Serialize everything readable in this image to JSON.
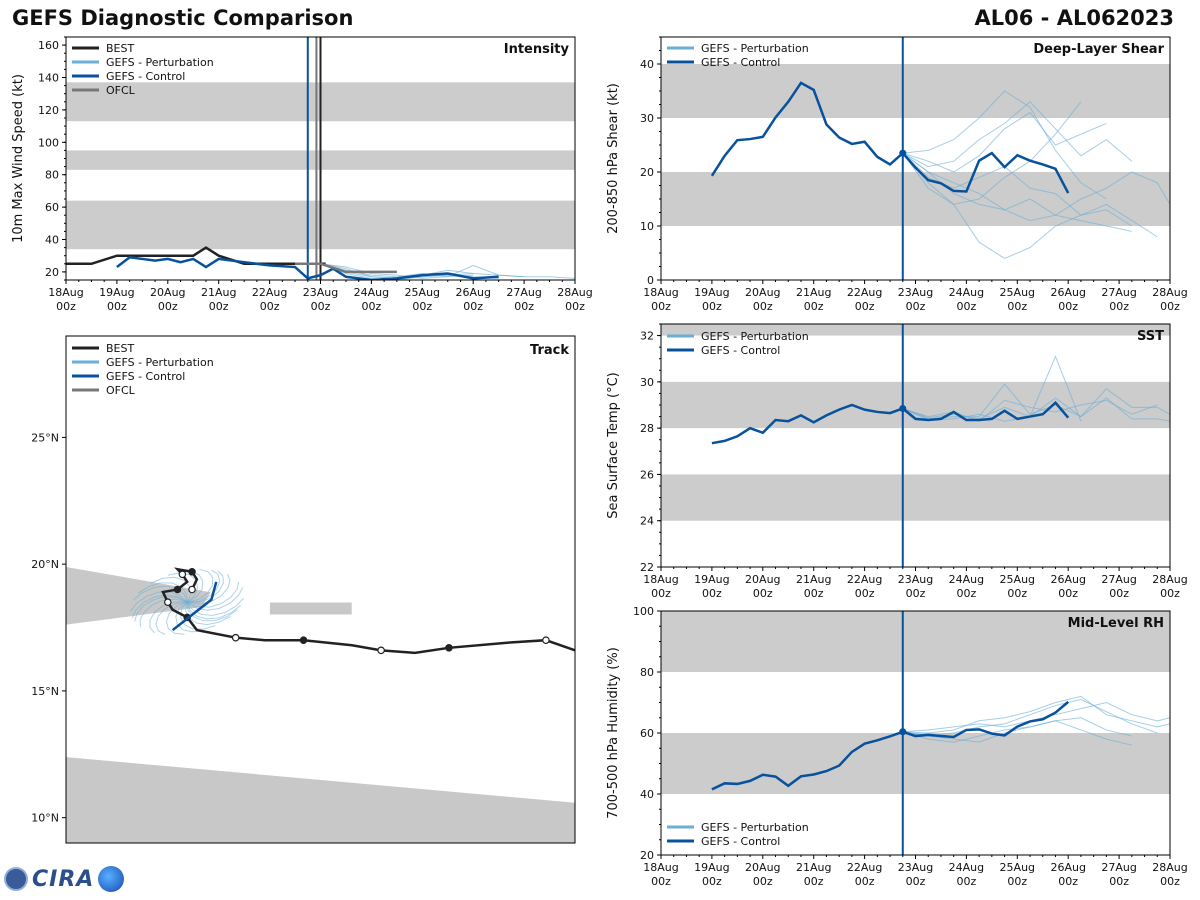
{
  "header": {
    "title_left": "GEFS Diagnostic Comparison",
    "title_right": "AL06 - AL062023"
  },
  "logo": {
    "text": "CIRA"
  },
  "x_ticks": [
    "18Aug\n00z",
    "19Aug\n00z",
    "20Aug\n00z",
    "21Aug\n00z",
    "22Aug\n00z",
    "23Aug\n00z",
    "24Aug\n00z",
    "25Aug\n00z",
    "26Aug\n00z",
    "27Aug\n00z",
    "28Aug\n00z"
  ],
  "legend_labels": {
    "best": "BEST",
    "pert": "GEFS - Perturbation",
    "ctrl": "GEFS - Control",
    "ofcl": "OFCL"
  },
  "colors": {
    "best": "#222222",
    "pert": "#6baed6",
    "ctrl": "#08519c",
    "ofcl": "#777777",
    "band": "#cccccc",
    "land": "#c8c8c8"
  },
  "chart_data": [
    {
      "id": "intensity",
      "type": "line",
      "title": "Intensity",
      "ylabel": "10m Max Wind Speed (kt)",
      "ylim": [
        15,
        165
      ],
      "yticks": [
        20,
        40,
        60,
        80,
        100,
        120,
        140,
        160
      ],
      "bands": [
        [
          34,
          64
        ],
        [
          83,
          95
        ],
        [
          113,
          137
        ]
      ],
      "vlines": [
        {
          "x": 4.92,
          "color": "#777777"
        },
        {
          "x": 5.0,
          "color": "#222222"
        },
        {
          "x": 4.75,
          "color": "#08519c"
        }
      ],
      "series": [
        {
          "name": "BEST",
          "x": [
            0,
            0.5,
            1.0,
            1.5,
            2.0,
            2.5,
            2.75,
            3.0,
            3.5,
            4.0,
            4.5,
            5.0,
            5.1
          ],
          "y": [
            25,
            25,
            30,
            30,
            30,
            30,
            35,
            30,
            25,
            25,
            25,
            25,
            25
          ]
        },
        {
          "name": "GEFS - Control",
          "x": [
            1.0,
            1.25,
            1.5,
            1.75,
            2.0,
            2.25,
            2.5,
            2.75,
            3.0,
            3.5,
            4.0,
            4.5,
            4.75,
            5.0,
            5.25,
            5.5,
            6.0,
            6.5,
            7.0,
            7.5,
            8.0,
            8.5
          ],
          "y": [
            23,
            29,
            28,
            27,
            28,
            26,
            28,
            23,
            28,
            26,
            24,
            23,
            16,
            18,
            22,
            17,
            15,
            16,
            18,
            19,
            16,
            17
          ]
        },
        {
          "name": "OFCL",
          "x": [
            4.5,
            5.0,
            5.5,
            6.0,
            6.5
          ],
          "y": [
            25,
            25,
            20,
            20,
            20
          ]
        }
      ],
      "perturbation": [
        {
          "x": [
            5,
            5.5,
            6,
            6.5,
            7,
            7.5,
            8
          ],
          "y": [
            25,
            21,
            18,
            17,
            19,
            17,
            18
          ]
        },
        {
          "x": [
            5,
            5.5,
            6,
            6.5,
            7,
            7.5,
            8,
            8.5
          ],
          "y": [
            25,
            19,
            16,
            15,
            17,
            18,
            17,
            16
          ]
        },
        {
          "x": [
            5,
            5.5,
            6,
            6.5,
            7,
            7.5,
            8,
            8.5,
            9
          ],
          "y": [
            25,
            23,
            19,
            18,
            16,
            17,
            24,
            18,
            17
          ]
        },
        {
          "x": [
            5,
            5.5,
            6,
            6.5,
            7,
            7.5,
            8
          ],
          "y": [
            25,
            22,
            17,
            16,
            18,
            21,
            19
          ]
        },
        {
          "x": [
            5,
            5.5,
            6,
            6.5,
            7,
            7.5,
            8,
            8.5,
            9,
            9.5,
            10
          ],
          "y": [
            25,
            20,
            17,
            16,
            17,
            18,
            19,
            18,
            17,
            17,
            16
          ]
        }
      ]
    },
    {
      "id": "shear",
      "type": "line",
      "title": "Deep-Layer Shear",
      "ylabel": "200-850 hPa Shear (kt)",
      "ylim": [
        0,
        45
      ],
      "yticks": [
        0,
        10,
        20,
        30,
        40
      ],
      "bands": [
        [
          10,
          20
        ],
        [
          30,
          40
        ]
      ],
      "vline_x": 4.75,
      "series": [
        {
          "name": "GEFS - Control",
          "x": [
            1.0,
            1.25,
            1.5,
            1.75,
            2.0,
            2.25,
            2.5,
            2.75,
            3.0,
            3.25,
            3.5,
            3.75,
            4.0,
            4.25,
            4.5,
            4.75,
            5.0,
            5.25,
            5.5,
            5.75,
            6.0,
            6.25,
            6.5,
            6.75,
            7.0,
            7.25,
            7.5,
            7.75,
            8.0
          ],
          "y": [
            19.3,
            23.0,
            25.9,
            26.1,
            26.5,
            30.1,
            33.0,
            36.5,
            35.2,
            28.8,
            26.4,
            25.2,
            25.6,
            22.8,
            21.4,
            23.5,
            20.8,
            18.5,
            17.9,
            16.5,
            16.4,
            22.1,
            23.5,
            20.9,
            23.1,
            22.1,
            21.4,
            20.6,
            16.1
          ]
        }
      ],
      "perturbation": [
        {
          "x": [
            4.75,
            5.25,
            5.75,
            6.25,
            6.75,
            7.25,
            7.75,
            8.25,
            8.75,
            9.25
          ],
          "y": [
            23.5,
            20,
            16,
            14,
            13,
            15,
            12,
            11,
            10,
            9
          ]
        },
        {
          "x": [
            4.75,
            5.25,
            5.75,
            6.25,
            6.75,
            7.25,
            7.75,
            8.25,
            8.75
          ],
          "y": [
            23.5,
            22,
            20,
            23,
            28,
            31,
            25,
            27,
            29
          ]
        },
        {
          "x": [
            4.75,
            5.25,
            5.75,
            6.25,
            6.75,
            7.25,
            7.75,
            8.25,
            8.75,
            9.25,
            9.75
          ],
          "y": [
            23.5,
            18,
            14,
            7,
            4,
            6,
            10,
            12,
            14,
            11,
            8
          ]
        },
        {
          "x": [
            4.75,
            5.25,
            5.75,
            6.25,
            6.75,
            7.25,
            7.75,
            8.25,
            8.75
          ],
          "y": [
            23.5,
            24,
            26,
            30,
            35,
            32,
            24,
            18,
            15
          ]
        },
        {
          "x": [
            4.75,
            5.25,
            5.75,
            6.25,
            6.75,
            7.25,
            7.75,
            8.25,
            8.75,
            9.25
          ],
          "y": [
            23.5,
            19,
            17,
            19,
            21,
            17,
            16,
            12,
            13,
            10
          ]
        },
        {
          "x": [
            4.75,
            5.25,
            5.75,
            6.25,
            6.75,
            7.25,
            7.75,
            8.25,
            8.75,
            9.25
          ],
          "y": [
            23.5,
            21,
            22,
            26,
            29,
            33,
            28,
            23,
            26,
            22
          ]
        },
        {
          "x": [
            4.75,
            5.25,
            5.75,
            6.25,
            6.75,
            7.25,
            7.75,
            8.25
          ],
          "y": [
            23.5,
            17,
            14,
            15,
            19,
            22,
            27,
            33
          ]
        },
        {
          "x": [
            4.75,
            5.25,
            5.75,
            6.25,
            6.75,
            7.25,
            7.75,
            8.25,
            8.75,
            9.25,
            9.75,
            10
          ],
          "y": [
            23.5,
            20,
            18,
            16,
            13,
            11,
            12,
            15,
            17,
            20,
            18,
            14
          ]
        }
      ]
    },
    {
      "id": "sst",
      "type": "line",
      "title": "SST",
      "ylabel": "Sea Surface Temp (°C)",
      "ylim": [
        22,
        32.5
      ],
      "yticks": [
        22,
        24,
        26,
        28,
        30,
        32
      ],
      "bands": [
        [
          24,
          26
        ],
        [
          28,
          30
        ],
        [
          32,
          32.5
        ]
      ],
      "vline_x": 4.75,
      "series": [
        {
          "name": "GEFS - Control",
          "x": [
            1.0,
            1.25,
            1.5,
            1.75,
            2.0,
            2.25,
            2.5,
            2.75,
            3.0,
            3.25,
            3.5,
            3.75,
            4.0,
            4.25,
            4.5,
            4.75,
            5.0,
            5.25,
            5.5,
            5.75,
            6.0,
            6.25,
            6.5,
            6.75,
            7.0,
            7.25,
            7.5,
            7.75,
            8.0
          ],
          "y": [
            27.35,
            27.45,
            27.65,
            28.0,
            27.8,
            28.35,
            28.3,
            28.55,
            28.25,
            28.55,
            28.8,
            29.0,
            28.8,
            28.7,
            28.65,
            28.85,
            28.4,
            28.35,
            28.4,
            28.7,
            28.35,
            28.35,
            28.4,
            28.75,
            28.4,
            28.5,
            28.6,
            29.1,
            28.45
          ]
        }
      ],
      "perturbation": [
        {
          "x": [
            4.75,
            5.25,
            5.75,
            6.25,
            6.75,
            7.25,
            7.75,
            8.25,
            8.75,
            9.25,
            9.75,
            10
          ],
          "y": [
            28.85,
            28.4,
            28.5,
            28.5,
            29.9,
            28.6,
            29.0,
            28.5,
            29.7,
            28.9,
            28.9,
            28.6
          ]
        },
        {
          "x": [
            4.75,
            5.25,
            5.75,
            6.25,
            6.75,
            7.25,
            7.75,
            8.25
          ],
          "y": [
            28.85,
            28.45,
            28.6,
            28.4,
            28.9,
            28.5,
            31.1,
            28.3
          ]
        },
        {
          "x": [
            4.75,
            5.25,
            5.75,
            6.25,
            6.75,
            7.25,
            7.75,
            8.25,
            8.75,
            9.25,
            9.75,
            10
          ],
          "y": [
            28.85,
            28.35,
            28.4,
            28.6,
            28.3,
            28.5,
            29.3,
            28.5,
            29.3,
            28.4,
            28.4,
            28.3
          ]
        },
        {
          "x": [
            4.75,
            5.25,
            5.75,
            6.25,
            6.75,
            7.25,
            7.75,
            8.25,
            8.75,
            9.25,
            9.75
          ],
          "y": [
            28.85,
            28.5,
            28.7,
            28.3,
            29.2,
            28.9,
            28.7,
            29.0,
            29.2,
            28.6,
            29.0
          ]
        }
      ]
    },
    {
      "id": "rh",
      "type": "line",
      "title": "Mid-Level RH",
      "ylabel": "700-500 hPa Humidity (%)",
      "ylim": [
        20,
        100
      ],
      "yticks": [
        20,
        40,
        60,
        80,
        100
      ],
      "bands": [
        [
          40,
          60
        ],
        [
          80,
          100
        ]
      ],
      "vline_x": 4.75,
      "series": [
        {
          "name": "GEFS - Control",
          "x": [
            1.0,
            1.25,
            1.5,
            1.75,
            2.0,
            2.25,
            2.5,
            2.75,
            3.0,
            3.25,
            3.5,
            3.75,
            4.0,
            4.25,
            4.5,
            4.75,
            5.0,
            5.25,
            5.5,
            5.75,
            6.0,
            6.25,
            6.5,
            6.75,
            7.0,
            7.25,
            7.5,
            7.75,
            8.0
          ],
          "y": [
            41.5,
            43.5,
            43.3,
            44.3,
            46.3,
            45.7,
            42.7,
            45.8,
            46.4,
            47.5,
            49.3,
            53.8,
            56.5,
            57.6,
            58.9,
            60.4,
            59.0,
            59.4,
            59.0,
            58.7,
            61.0,
            61.2,
            59.8,
            59.2,
            62.1,
            63.8,
            64.5,
            66.7,
            70.2
          ]
        }
      ],
      "perturbation": [
        {
          "x": [
            4.75,
            5.25,
            5.75,
            6.25,
            6.75,
            7.25,
            7.75,
            8.25,
            8.75,
            9.25,
            9.75,
            10
          ],
          "y": [
            60.4,
            60,
            61,
            64,
            65,
            67,
            70,
            72,
            66,
            64,
            62,
            63
          ]
        },
        {
          "x": [
            4.75,
            5.25,
            5.75,
            6.25,
            6.75,
            7.25,
            7.75,
            8.25,
            8.75,
            9.25,
            9.75
          ],
          "y": [
            60.4,
            59,
            60,
            62,
            63,
            66,
            69,
            71,
            67,
            63,
            60
          ]
        },
        {
          "x": [
            4.75,
            5.25,
            5.75,
            6.25,
            6.75,
            7.25,
            7.75,
            8.25,
            8.75,
            9.25
          ],
          "y": [
            60.4,
            58,
            57,
            59,
            61,
            62,
            64,
            61,
            58,
            56
          ]
        },
        {
          "x": [
            4.75,
            5.25,
            5.75,
            6.25,
            6.75,
            7.25,
            7.75,
            8.25,
            8.75,
            9.25,
            9.75,
            10
          ],
          "y": [
            60.4,
            61,
            62,
            63,
            62,
            64,
            66,
            68,
            70,
            66,
            64,
            65
          ]
        },
        {
          "x": [
            4.75,
            5.25,
            5.75,
            6.25,
            6.75,
            7.25,
            7.75,
            8.25,
            8.75,
            9.25
          ],
          "y": [
            60.4,
            59,
            58,
            57,
            60,
            62,
            64,
            65,
            61,
            59
          ]
        }
      ]
    },
    {
      "id": "track",
      "type": "scatter",
      "title": "Track",
      "xlim_lon": [
        -71.5,
        -61.0
      ],
      "ylim_lat": [
        9.0,
        29.0
      ],
      "yticks_lat": [
        10,
        15,
        20,
        25
      ],
      "ytick_labels": [
        "10°N",
        "15°N",
        "20°N",
        "25°N"
      ],
      "best_track": {
        "lon": [
          -61.0,
          -61.6,
          -62.4,
          -63.6,
          -64.3,
          -65.0,
          -65.6,
          -66.6,
          -67.4,
          -68.0,
          -68.8,
          -69.0,
          -69.3,
          -69.4,
          -69.5,
          -69.2,
          -69.0,
          -69.1,
          -69.2,
          -68.9,
          -68.8,
          -68.9
        ],
        "lat": [
          16.6,
          17.0,
          16.9,
          16.7,
          16.5,
          16.6,
          16.8,
          17.0,
          17.0,
          17.1,
          17.4,
          17.9,
          18.2,
          18.5,
          18.9,
          19.0,
          19.3,
          19.6,
          19.8,
          19.7,
          19.4,
          19.0
        ]
      },
      "ctrl_track": {
        "lon": [
          -69.3,
          -69.1,
          -68.9,
          -68.7,
          -68.5,
          -68.4
        ],
        "lat": [
          17.4,
          17.7,
          18.0,
          18.3,
          18.6,
          19.3
        ]
      },
      "land": [
        {
          "name": "Puerto Rico",
          "lon": [
            -67.3,
            -65.6,
            -65.6,
            -67.3
          ],
          "lat": [
            18.5,
            18.5,
            18.0,
            18.0
          ]
        },
        {
          "name": "Hispaniola",
          "lon": [
            -71.5,
            -68.5,
            -68.7,
            -71.5
          ],
          "lat": [
            19.9,
            18.9,
            18.3,
            17.6
          ]
        },
        {
          "name": "South America",
          "lon": [
            -71.5,
            -61.0,
            -61.0,
            -71.5
          ],
          "lat": [
            12.4,
            10.6,
            9.0,
            9.0
          ]
        }
      ]
    }
  ]
}
